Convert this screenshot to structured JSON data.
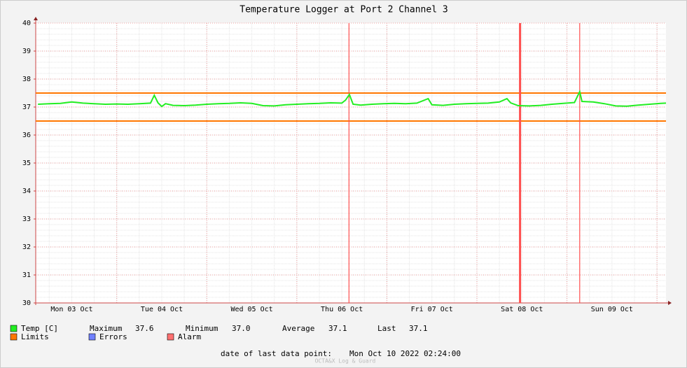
{
  "chart_data": {
    "type": "line",
    "title": "Temperature Logger at Port 2 Channel 3",
    "xlim": [
      2.4,
      170.4
    ],
    "xticks": [
      {
        "value": 12,
        "label": "Mon 03 Oct"
      },
      {
        "value": 36,
        "label": "Tue 04 Oct"
      },
      {
        "value": 60,
        "label": "Wed 05 Oct"
      },
      {
        "value": 84,
        "label": "Thu 06 Oct"
      },
      {
        "value": 108,
        "label": "Fri 07 Oct"
      },
      {
        "value": 132,
        "label": "Sat 08 Oct"
      },
      {
        "value": 156,
        "label": "Sun 09 Oct"
      }
    ],
    "xgrid": [
      24,
      48,
      72,
      96,
      120,
      144,
      168
    ],
    "xminor": 6,
    "ylim": [
      30,
      40
    ],
    "yticks": [
      30,
      31,
      32,
      33,
      34,
      35,
      36,
      37,
      38,
      39,
      40
    ],
    "yminor": 0.2,
    "grid": true,
    "series": [
      {
        "name": "Temp [C]",
        "color": "#22ee22",
        "x": [
          3,
          6,
          9,
          12,
          15,
          18,
          21,
          24,
          27,
          30,
          33,
          34,
          35,
          36,
          37,
          39,
          42,
          45,
          48,
          51,
          54,
          57,
          60,
          63,
          66,
          69,
          72,
          75,
          78,
          81,
          84,
          85,
          86,
          87,
          89,
          92,
          95,
          98,
          101,
          104,
          107,
          108,
          111,
          114,
          117,
          120,
          123,
          126,
          128,
          129,
          131,
          134,
          137,
          140,
          143,
          146,
          147.4,
          148,
          151,
          154,
          157,
          160,
          163,
          166,
          169,
          170.4
        ],
        "values": [
          37.1,
          37.12,
          37.13,
          37.18,
          37.14,
          37.12,
          37.1,
          37.11,
          37.1,
          37.12,
          37.14,
          37.42,
          37.15,
          37.02,
          37.12,
          37.06,
          37.05,
          37.07,
          37.1,
          37.12,
          37.13,
          37.15,
          37.13,
          37.05,
          37.04,
          37.08,
          37.1,
          37.12,
          37.13,
          37.15,
          37.14,
          37.25,
          37.45,
          37.1,
          37.07,
          37.1,
          37.12,
          37.13,
          37.12,
          37.14,
          37.3,
          37.08,
          37.06,
          37.1,
          37.12,
          37.13,
          37.14,
          37.18,
          37.3,
          37.15,
          37.05,
          37.04,
          37.06,
          37.1,
          37.13,
          37.16,
          37.55,
          37.2,
          37.18,
          37.12,
          37.04,
          37.03,
          37.07,
          37.1,
          37.13,
          37.14
        ]
      }
    ],
    "limits": [
      37.5,
      36.5
    ],
    "limits_color": "#ff7700",
    "alarms": [
      85.9,
      131.5,
      147.4
    ],
    "alarm_color": "#ff5050",
    "legend": {
      "temp": "Temp [C]",
      "stats": [
        [
          "Maximum",
          "37.6"
        ],
        [
          "Minimum",
          "37.0"
        ],
        [
          "Average",
          "37.1"
        ],
        [
          "Last",
          "37.1"
        ]
      ],
      "limits": "Limits",
      "errors": "Errors",
      "alarm": "Alarm",
      "errors_color": "#7080ff",
      "alarm_box_color": "#ff7070"
    },
    "footer": {
      "label": "date of last data point:",
      "date": "Mon Oct 10 2022 02:24:00",
      "watermark": "OCTA&X Log & Guard"
    }
  }
}
